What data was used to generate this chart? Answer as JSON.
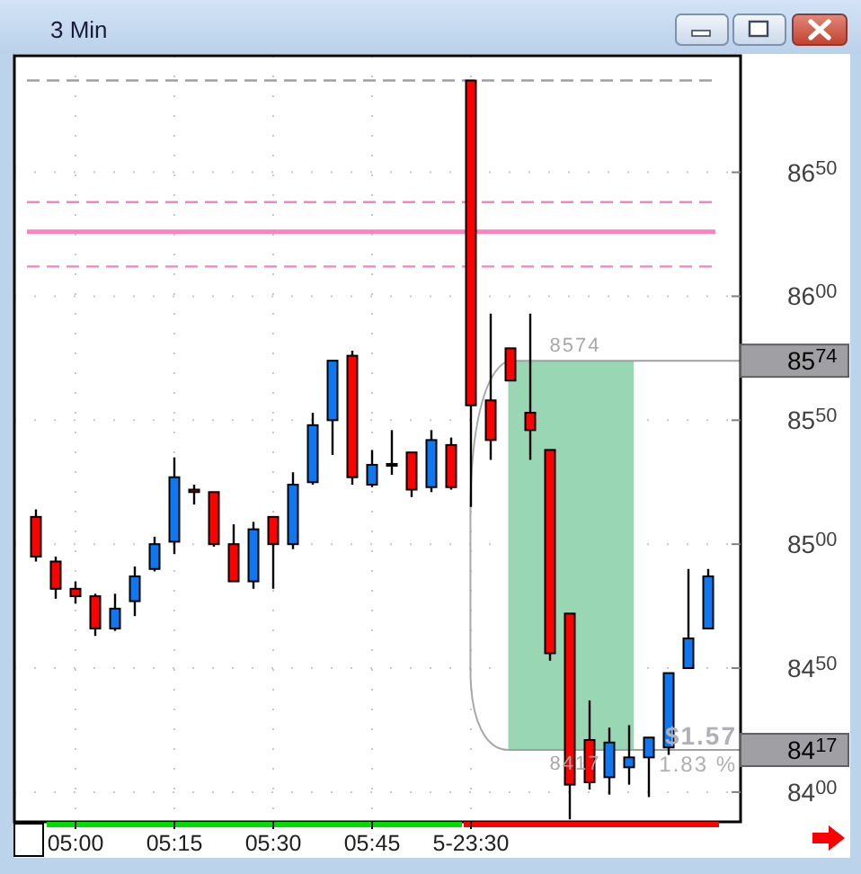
{
  "chart_data": {
    "type": "candlestick",
    "title": "3 Min",
    "categories": [
      null,
      null,
      "05:00",
      null,
      null,
      null,
      null,
      "05:15",
      null,
      null,
      null,
      null,
      "05:30",
      null,
      null,
      null,
      null,
      "05:45",
      null,
      null,
      null,
      null,
      "5-23:30",
      null,
      null,
      null,
      null,
      null,
      null,
      null,
      null,
      null,
      null,
      null,
      null
    ],
    "ohlc": [
      [
        8511,
        8514,
        8493,
        8495
      ],
      [
        8493,
        8495,
        8478,
        8482
      ],
      [
        8482,
        8485,
        8476,
        8479
      ],
      [
        8479,
        8480,
        8463,
        8466
      ],
      [
        8466,
        8480,
        8465,
        8474
      ],
      [
        8477,
        8491,
        8471,
        8487
      ],
      [
        8490,
        8503,
        8489,
        8500
      ],
      [
        8501,
        8535,
        8496,
        8527
      ],
      [
        8522,
        8524,
        8516,
        8521
      ],
      [
        8521,
        8521,
        8499,
        8500
      ],
      [
        8500,
        8508,
        8485,
        8485
      ],
      [
        8485,
        8509,
        8482,
        8506
      ],
      [
        8511,
        8511,
        8482,
        8500
      ],
      [
        8500,
        8529,
        8498,
        8524
      ],
      [
        8525,
        8553,
        8524,
        8548
      ],
      [
        8550,
        8574,
        8536,
        8574
      ],
      [
        8576,
        8578,
        8524,
        8527
      ],
      [
        8524,
        8538,
        8523,
        8532
      ],
      [
        8532,
        8546,
        8528,
        8532
      ],
      [
        8537,
        8537,
        8519,
        8522
      ],
      [
        8523,
        8546,
        8521,
        8542
      ],
      [
        8540,
        8543,
        8522,
        8523
      ],
      [
        8687,
        8687,
        8515,
        8556
      ],
      [
        8558,
        8593,
        8534,
        8542
      ],
      [
        8579,
        8579,
        8566,
        8566
      ],
      [
        8553,
        8593,
        8534,
        8546
      ],
      [
        8538,
        8538,
        8453,
        8456
      ],
      [
        8472,
        8472,
        8389,
        8403
      ],
      [
        8421,
        8437,
        8401,
        8404
      ],
      [
        8406,
        8426,
        8399,
        8420
      ],
      [
        8410,
        8427,
        8403,
        8414
      ],
      [
        8414,
        8422,
        8398,
        8422
      ],
      [
        8418,
        8448,
        8415,
        8448
      ],
      [
        8450,
        8490,
        8450,
        8462
      ],
      [
        8466,
        8490,
        8466,
        8487
      ]
    ],
    "colors": [
      "#ff0000",
      "#ff0000",
      "#ff0000",
      "#ff0000",
      "#0f78f0",
      "#0f78f0",
      "#0f78f0",
      "#0f78f0",
      "#ff0000",
      "#ff0000",
      "#ff0000",
      "#0f78f0",
      "#ff0000",
      "#0f78f0",
      "#0f78f0",
      "#0f78f0",
      "#ff0000",
      "#0f78f0",
      "#000000",
      "#ff0000",
      "#0f78f0",
      "#ff0000",
      "#ff0000",
      "#ff0000",
      "#ff0000",
      "#ff0000",
      "#ff0000",
      "#ff0000",
      "#ff0000",
      "#0f78f0",
      "#0f78f0",
      "#0f78f0",
      "#0f78f0",
      "#0f78f0",
      "#0f78f0"
    ],
    "ylim": [
      8388,
      8697
    ],
    "yticks": [
      8400,
      8417,
      8450,
      8500,
      8550,
      8574,
      8600,
      8650
    ],
    "grid": true,
    "ref_lines": [
      {
        "axis": "y",
        "value": 8687,
        "color": "#a0a0a0",
        "line_style": "dashed"
      },
      {
        "axis": "y",
        "value": 8638,
        "color": "#ff80c0",
        "line_style": "dashed"
      },
      {
        "axis": "y",
        "value": 8626,
        "color": "#ff80c0",
        "line_style": "solid"
      },
      {
        "axis": "y",
        "value": 8612,
        "color": "#ff80c0",
        "line_style": "dashed"
      },
      {
        "axis": "y",
        "value": 8574,
        "label": "8574",
        "color": "#a0a0a0",
        "line_style": "solid"
      },
      {
        "axis": "y",
        "value": 8417,
        "label": "8417",
        "color": "#a0a0a0",
        "line_style": "solid"
      }
    ],
    "bands": [
      {
        "axis": "y",
        "from": 8417,
        "to": 8574,
        "color": "#99d6b3"
      }
    ],
    "annotations": [
      "$1.57",
      "1.83 %"
    ]
  }
}
